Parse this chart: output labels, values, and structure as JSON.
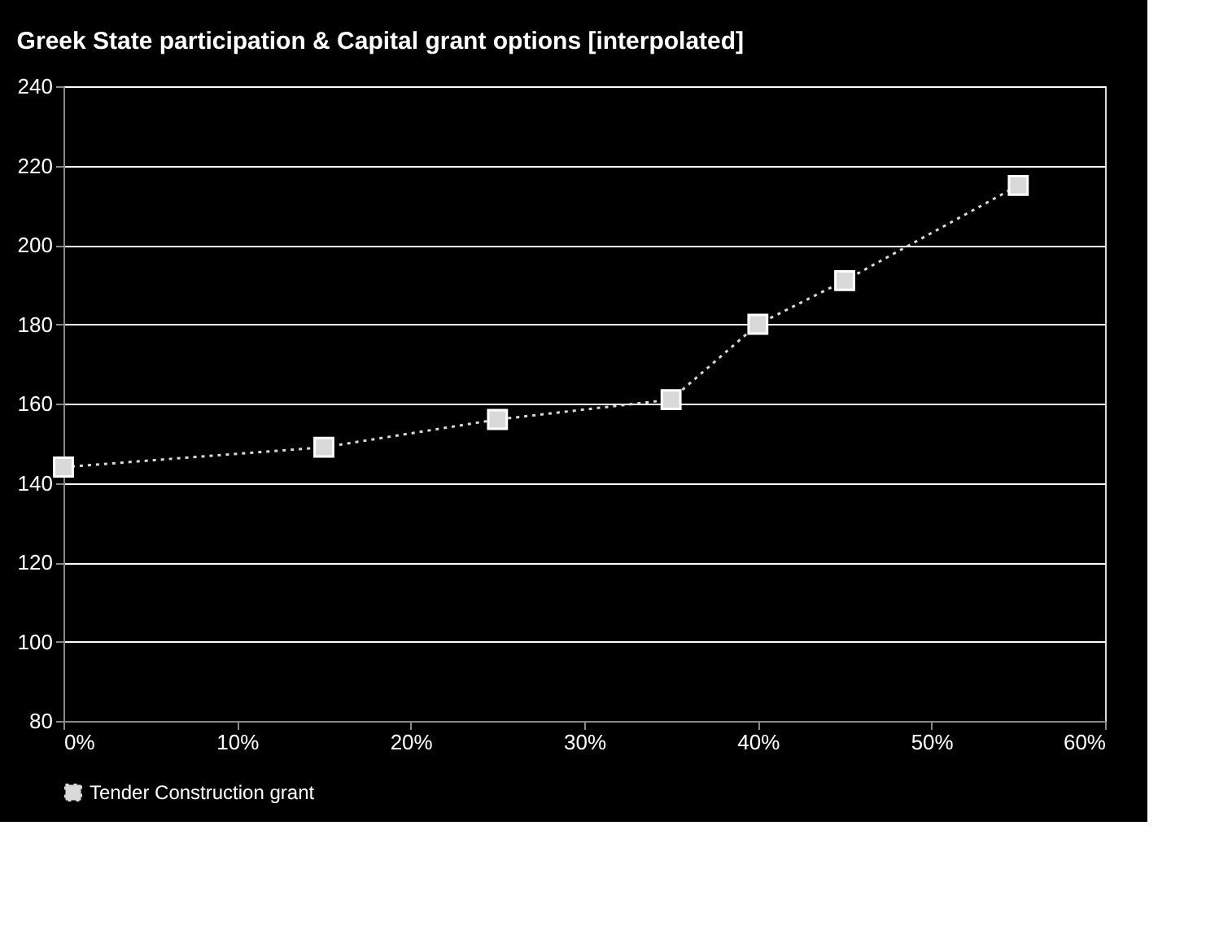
{
  "chart_data": {
    "type": "line",
    "title": "Greek State participation & Capital grant options [interpolated]",
    "x": [
      0,
      15,
      25,
      35,
      40,
      45,
      55
    ],
    "series": [
      {
        "name": "Tender Construction grant",
        "color": "#d9d9d9",
        "values": [
          144,
          149,
          156,
          161,
          180,
          191,
          215
        ]
      }
    ],
    "xlim": [
      0,
      60
    ],
    "xticks": [
      {
        "value": 0,
        "label": "0%"
      },
      {
        "value": 10,
        "label": "10%"
      },
      {
        "value": 20,
        "label": "20%"
      },
      {
        "value": 30,
        "label": "30%"
      },
      {
        "value": 40,
        "label": "40%"
      },
      {
        "value": 50,
        "label": "50%"
      },
      {
        "value": 60,
        "label": "60%"
      }
    ],
    "ylim": [
      80,
      240
    ],
    "yticks": [
      80,
      100,
      120,
      140,
      160,
      180,
      200,
      220,
      240
    ],
    "grid": "y",
    "legend": "bottom",
    "marker": "square",
    "line_style": "dotted"
  }
}
